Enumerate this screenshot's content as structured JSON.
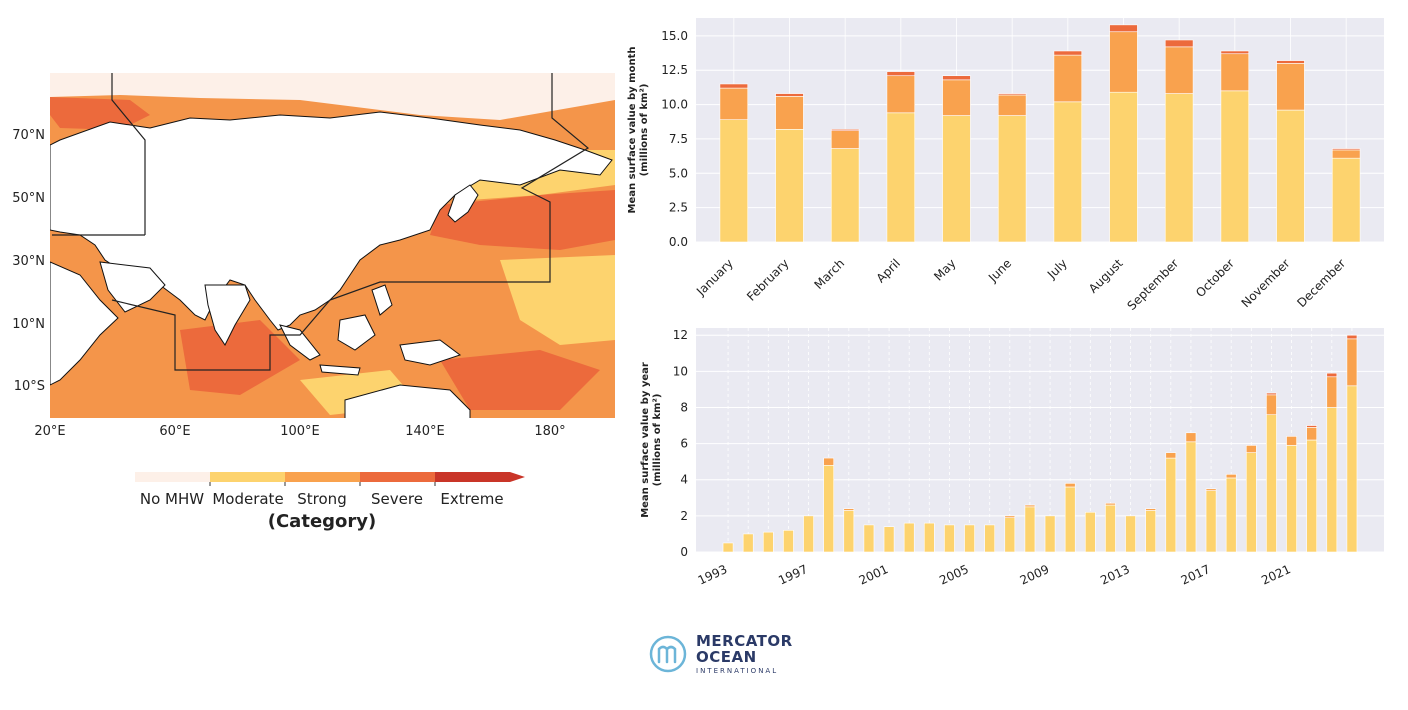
{
  "map": {
    "lat_labels": [
      "70°N",
      "50°N",
      "30°N",
      "10°N",
      "10°S"
    ],
    "lon_labels": [
      "20°E",
      "60°E",
      "100°E",
      "140°E",
      "180°"
    ],
    "legend": {
      "categories": [
        "No MHW",
        "Moderate",
        "Strong",
        "Severe",
        "Extreme"
      ],
      "colors": [
        "#fdf0e8",
        "#fdd36e",
        "#f9a24e",
        "#ec6a3c",
        "#c93528"
      ],
      "title": "(Category)"
    },
    "land_color": "#ffffff",
    "ocean_base_color": "#f4954a"
  },
  "chart_data": [
    {
      "type": "bar",
      "stacked": true,
      "title": "",
      "xlabel": "",
      "ylabel": "Mean surface value by month",
      "ylabel_unit": "(millions of km²)",
      "ylim": [
        0,
        16.3
      ],
      "yticks": [
        "0.0",
        "2.5",
        "5.0",
        "7.5",
        "10.0",
        "12.5",
        "15.0"
      ],
      "categories": [
        "January",
        "February",
        "March",
        "April",
        "May",
        "June",
        "July",
        "August",
        "September",
        "October",
        "November",
        "December"
      ],
      "series": [
        {
          "color": "#fdd36e",
          "values": [
            8.9,
            8.2,
            6.8,
            9.4,
            9.2,
            9.2,
            10.2,
            10.9,
            10.8,
            11.0,
            9.6,
            6.1
          ]
        },
        {
          "color": "#f9a24e",
          "values": [
            2.3,
            2.4,
            1.3,
            2.7,
            2.6,
            1.5,
            3.4,
            4.4,
            3.4,
            2.7,
            3.4,
            0.6
          ]
        },
        {
          "color": "#ec6a3c",
          "values": [
            0.3,
            0.2,
            0.1,
            0.3,
            0.3,
            0.1,
            0.3,
            0.5,
            0.5,
            0.2,
            0.2,
            0.1
          ]
        }
      ],
      "grid": true,
      "background": "#eaeaf2"
    },
    {
      "type": "bar",
      "stacked": true,
      "title": "",
      "xlabel": "",
      "ylabel": "Mean surface value by year",
      "ylabel_unit": "(millions of km²)",
      "ylim": [
        0,
        12.4
      ],
      "yticks": [
        "0",
        "2",
        "4",
        "6",
        "8",
        "10",
        "12"
      ],
      "categories": [
        "1993",
        "1994",
        "1995",
        "1996",
        "1997",
        "1998",
        "1999",
        "2000",
        "2001",
        "2002",
        "2003",
        "2004",
        "2005",
        "2006",
        "2007",
        "2008",
        "2009",
        "2010",
        "2011",
        "2012",
        "2013",
        "2014",
        "2015",
        "2016",
        "2017",
        "2018",
        "2019",
        "2020",
        "2021",
        "2022",
        "2023",
        "2024"
      ],
      "xtick_labels": [
        "1993",
        "1997",
        "2001",
        "2005",
        "2009",
        "2013",
        "2017",
        "2021"
      ],
      "series": [
        {
          "color": "#fdd36e",
          "values": [
            0.5,
            1.0,
            1.1,
            1.2,
            2.0,
            4.8,
            2.3,
            1.5,
            1.4,
            1.6,
            1.6,
            1.5,
            1.5,
            1.5,
            1.9,
            2.5,
            2.0,
            3.6,
            2.2,
            2.6,
            2.0,
            2.3,
            5.2,
            6.1,
            3.4,
            4.1,
            5.5,
            7.6,
            5.9,
            6.2,
            8.0,
            9.2
          ]
        },
        {
          "color": "#f9a24e",
          "values": [
            0.0,
            0.0,
            0.0,
            0.0,
            0.0,
            0.4,
            0.1,
            0.0,
            0.0,
            0.0,
            0.0,
            0.0,
            0.0,
            0.0,
            0.1,
            0.1,
            0.0,
            0.2,
            0.0,
            0.1,
            0.0,
            0.1,
            0.3,
            0.5,
            0.1,
            0.2,
            0.4,
            1.1,
            0.5,
            0.7,
            1.7,
            2.6
          ]
        },
        {
          "color": "#ec6a3c",
          "values": [
            0.0,
            0.0,
            0.0,
            0.0,
            0.0,
            0.0,
            0.0,
            0.0,
            0.0,
            0.0,
            0.0,
            0.0,
            0.0,
            0.0,
            0.0,
            0.0,
            0.0,
            0.0,
            0.0,
            0.0,
            0.0,
            0.0,
            0.0,
            0.0,
            0.0,
            0.0,
            0.0,
            0.1,
            0.0,
            0.1,
            0.2,
            0.2
          ]
        }
      ],
      "grid": true,
      "background": "#eaeaf2"
    }
  ],
  "logo": {
    "line1": "MERCATOR",
    "line2": "OCEAN",
    "line3": "INTERNATIONAL",
    "color": "#2b3a67",
    "accent": "#6cb5d8"
  }
}
